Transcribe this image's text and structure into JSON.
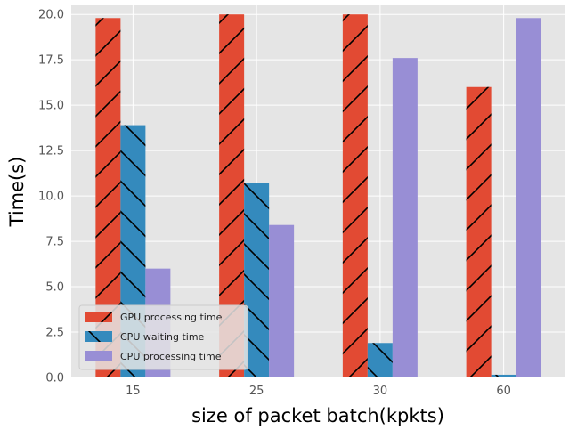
{
  "chart_data": {
    "type": "bar",
    "title": "",
    "xlabel": "size of packet batch(kpkts)",
    "ylabel": "Time(s)",
    "categories": [
      "15",
      "25",
      "30",
      "60"
    ],
    "ylim": [
      0,
      20.5
    ],
    "yticks": [
      "0.0",
      "2.5",
      "5.0",
      "7.5",
      "10.0",
      "12.5",
      "15.0",
      "17.5",
      "20.0"
    ],
    "grid": true,
    "legend_position": "lower-left",
    "series": [
      {
        "name": "GPU processing time",
        "values": [
          19.8,
          20.0,
          20.0,
          16.0
        ],
        "color": "#E24A33",
        "hatch": "forward-slash"
      },
      {
        "name": "CPU waiting time",
        "values": [
          13.9,
          10.7,
          1.9,
          0.15
        ],
        "color": "#348ABD",
        "hatch": "back-slash"
      },
      {
        "name": "CPU processing time",
        "values": [
          6.0,
          8.4,
          17.6,
          19.8
        ],
        "color": "#988ED5",
        "hatch": "none"
      }
    ]
  }
}
